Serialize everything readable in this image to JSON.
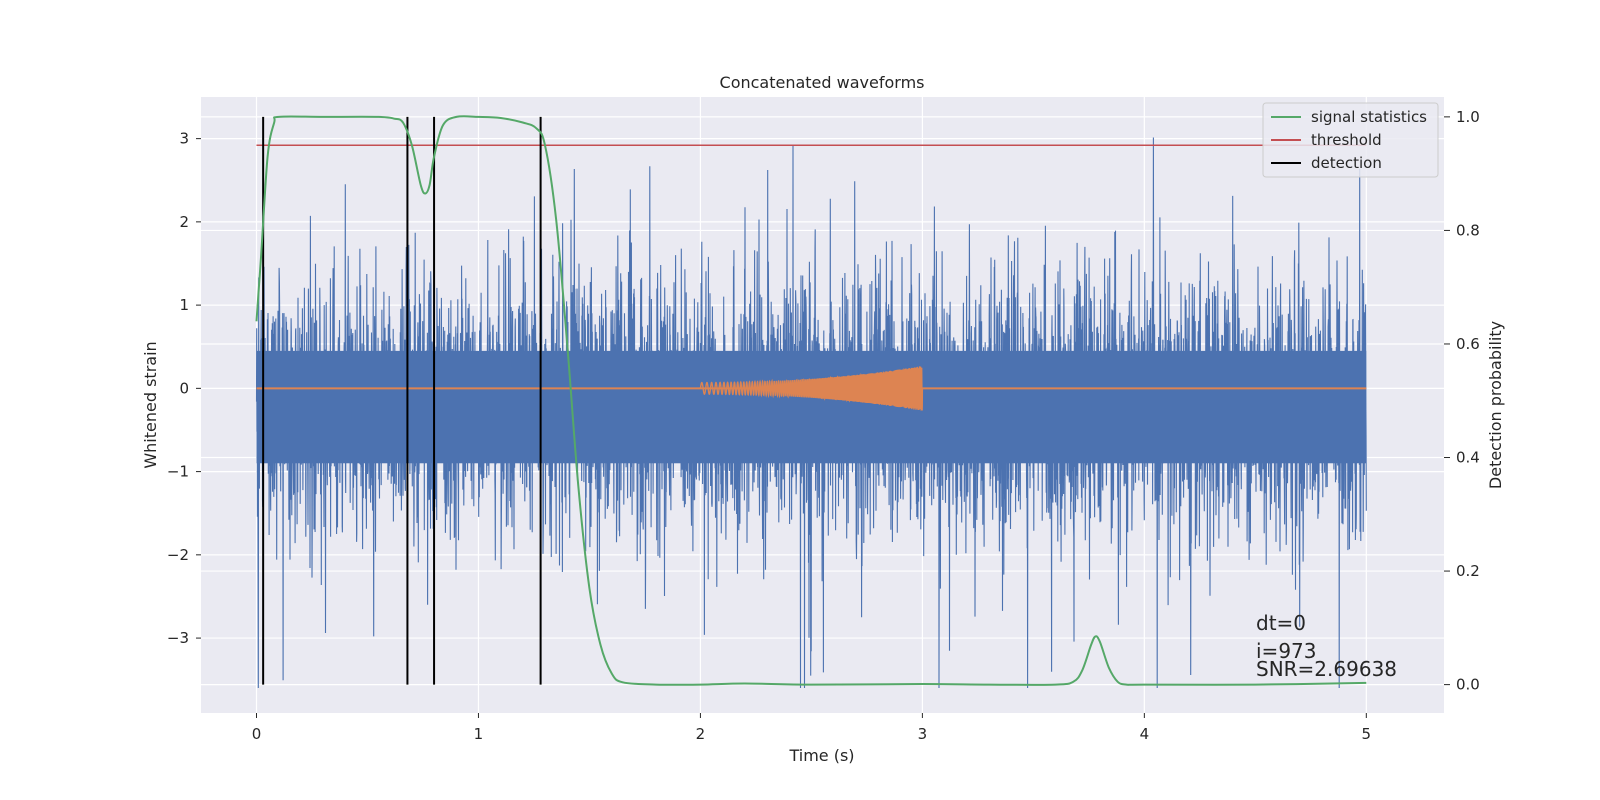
{
  "chart_data": {
    "type": "line",
    "title": "Concatenated waveforms",
    "xlabel": "Time (s)",
    "ylabel": "Whitened strain",
    "y2label": "Detection probability",
    "xlim": [
      -0.25,
      5.35
    ],
    "ylim": [
      -3.9,
      3.5
    ],
    "y2lim": [
      -0.05,
      1.035
    ],
    "x_ticks": [
      0,
      1,
      2,
      3,
      4,
      5
    ],
    "y_ticks": [
      -3,
      -2,
      -1,
      0,
      1,
      2,
      3
    ],
    "y2_ticks": [
      0.0,
      0.2,
      0.4,
      0.6,
      0.8,
      1.0
    ],
    "y_tick_labels": [
      "−3",
      "−2",
      "−1",
      "0",
      "1",
      "2",
      "3"
    ],
    "y2_tick_labels": [
      "0.0",
      "0.2",
      "0.4",
      "0.6",
      "0.8",
      "1.0"
    ],
    "grid": true,
    "legend_position": "top-right",
    "legend": [
      "signal statistics",
      "threshold",
      "detection"
    ],
    "colors": {
      "strain": "#4c72b0",
      "injection": "#dd8452",
      "signal_statistics": "#55a868",
      "threshold": "#c44e52",
      "detection": "#000000",
      "background": "#eaeaf2",
      "grid": "#ffffff"
    },
    "strain": {
      "t_range": [
        0,
        5
      ],
      "envelope_y": [
        -3.6,
        3.2
      ],
      "dense_band": [
        -0.9,
        0.45
      ]
    },
    "injection": {
      "t_range": [
        2.0,
        3.0
      ],
      "amplitude_start": 0.07,
      "amplitude_end": 0.27
    },
    "signal_statistics": {
      "x": [
        0.0,
        0.02,
        0.05,
        0.08,
        0.1,
        0.3,
        0.55,
        0.62,
        0.66,
        0.7,
        0.74,
        0.76,
        0.78,
        0.8,
        0.84,
        0.9,
        1.0,
        1.1,
        1.2,
        1.26,
        1.3,
        1.35,
        1.4,
        1.45,
        1.5,
        1.55,
        1.6,
        1.65,
        1.8,
        2.0,
        2.2,
        2.5,
        3.0,
        3.3,
        3.6,
        3.68,
        3.72,
        3.76,
        3.78,
        3.8,
        3.84,
        3.88,
        3.92,
        4.0,
        4.5,
        5.0
      ],
      "y": [
        0.64,
        0.75,
        0.93,
        0.99,
        1.0,
        1.0,
        1.0,
        0.997,
        0.99,
        0.95,
        0.88,
        0.865,
        0.88,
        0.93,
        0.985,
        1.0,
        1.0,
        0.998,
        0.99,
        0.98,
        0.95,
        0.82,
        0.6,
        0.35,
        0.17,
        0.07,
        0.02,
        0.004,
        0.0,
        0.0,
        0.002,
        0.0,
        0.001,
        0.0,
        0.0,
        0.005,
        0.025,
        0.07,
        0.085,
        0.075,
        0.03,
        0.005,
        0.0,
        0.0,
        0.0,
        0.003
      ]
    },
    "threshold": 0.95,
    "detections": [
      0.03,
      0.68,
      0.8,
      1.28
    ],
    "annotations": [
      "dt=0",
      "i=973",
      "SNR=2.69638"
    ]
  }
}
